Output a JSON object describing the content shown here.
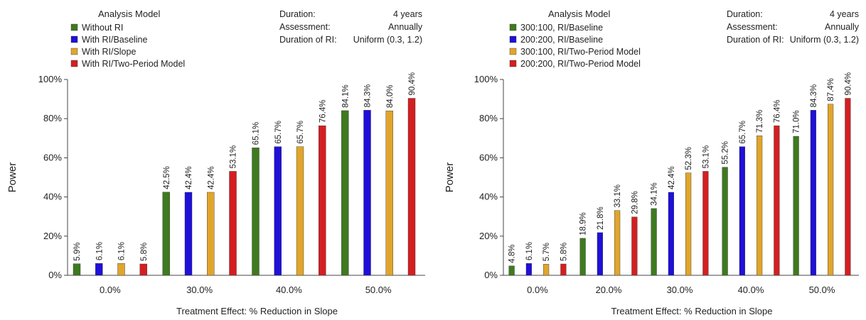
{
  "chart_data": [
    {
      "type": "bar",
      "ylabel": "Power",
      "xlabel": "Treatment Effect: % Reduction in Slope",
      "ylim": [
        0,
        100
      ],
      "yticks": [
        "0%",
        "20%",
        "40%",
        "60%",
        "80%",
        "100%"
      ],
      "categories": [
        "0.0%",
        "30.0%",
        "40.0%",
        "50.0%"
      ],
      "legend": {
        "title": "Analysis Model",
        "placement": "top-left"
      },
      "info": {
        "rows": [
          {
            "label": "Duration:",
            "value": "4 years"
          },
          {
            "label": "Assessment:",
            "value": "Annually"
          },
          {
            "label": "Duration of RI:",
            "value": "Uniform (0.3, 1.2)"
          }
        ]
      },
      "series": [
        {
          "name": "Without RI",
          "color": "#3e7a1f",
          "values": [
            5.9,
            42.5,
            65.1,
            84.1
          ],
          "labels": [
            "5.9%",
            "42.5%",
            "65.1%",
            "84.1%"
          ]
        },
        {
          "name": "With RI/Baseline",
          "color": "#1f10d8",
          "values": [
            6.1,
            42.4,
            65.7,
            84.3
          ],
          "labels": [
            "6.1%",
            "42.4%",
            "65.7%",
            "84.3%"
          ]
        },
        {
          "name": "With RI/Slope",
          "color": "#e0a52c",
          "values": [
            6.1,
            42.4,
            65.7,
            84.0
          ],
          "labels": [
            "6.1%",
            "42.4%",
            "65.7%",
            "84.0%"
          ]
        },
        {
          "name": "With RI/Two-Period Model",
          "color": "#d31f22",
          "values": [
            5.8,
            53.1,
            76.4,
            90.4
          ],
          "labels": [
            "5.8%",
            "53.1%",
            "76.4%",
            "90.4%"
          ]
        }
      ]
    },
    {
      "type": "bar",
      "ylabel": "Power",
      "xlabel": "Treatment Effect: % Reduction in Slope",
      "ylim": [
        0,
        100
      ],
      "yticks": [
        "0%",
        "20%",
        "40%",
        "60%",
        "80%",
        "100%"
      ],
      "categories": [
        "0.0%",
        "20.0%",
        "30.0%",
        "40.0%",
        "50.0%"
      ],
      "legend": {
        "title": "Analysis Model",
        "placement": "top-left"
      },
      "info": {
        "rows": [
          {
            "label": "Duration:",
            "value": "4 years"
          },
          {
            "label": "Assessment:",
            "value": "Annually"
          },
          {
            "label": "Duration of RI:",
            "value": "Uniform (0.3, 1.2)"
          }
        ]
      },
      "series": [
        {
          "name": "300:100, RI/Baseline",
          "color": "#3e7a1f",
          "values": [
            4.8,
            18.9,
            34.1,
            55.2,
            71.0
          ],
          "labels": [
            "4.8%",
            "18.9%",
            "34.1%",
            "55.2%",
            "71.0%"
          ]
        },
        {
          "name": "200:200, RI/Baseline",
          "color": "#1f10d8",
          "values": [
            6.1,
            21.8,
            42.4,
            65.7,
            84.3
          ],
          "labels": [
            "6.1%",
            "21.8%",
            "42.4%",
            "65.7%",
            "84.3%"
          ]
        },
        {
          "name": "300:100, RI/Two-Period Model",
          "color": "#e0a52c",
          "values": [
            5.7,
            33.1,
            52.3,
            71.3,
            87.4
          ],
          "labels": [
            "5.7%",
            "33.1%",
            "52.3%",
            "71.3%",
            "87.4%"
          ]
        },
        {
          "name": "200:200, RI/Two-Period Model",
          "color": "#d31f22",
          "values": [
            5.8,
            29.8,
            53.1,
            76.4,
            90.4
          ],
          "labels": [
            "5.8%",
            "29.8%",
            "53.1%",
            "76.4%",
            "90.4%"
          ]
        }
      ]
    }
  ]
}
